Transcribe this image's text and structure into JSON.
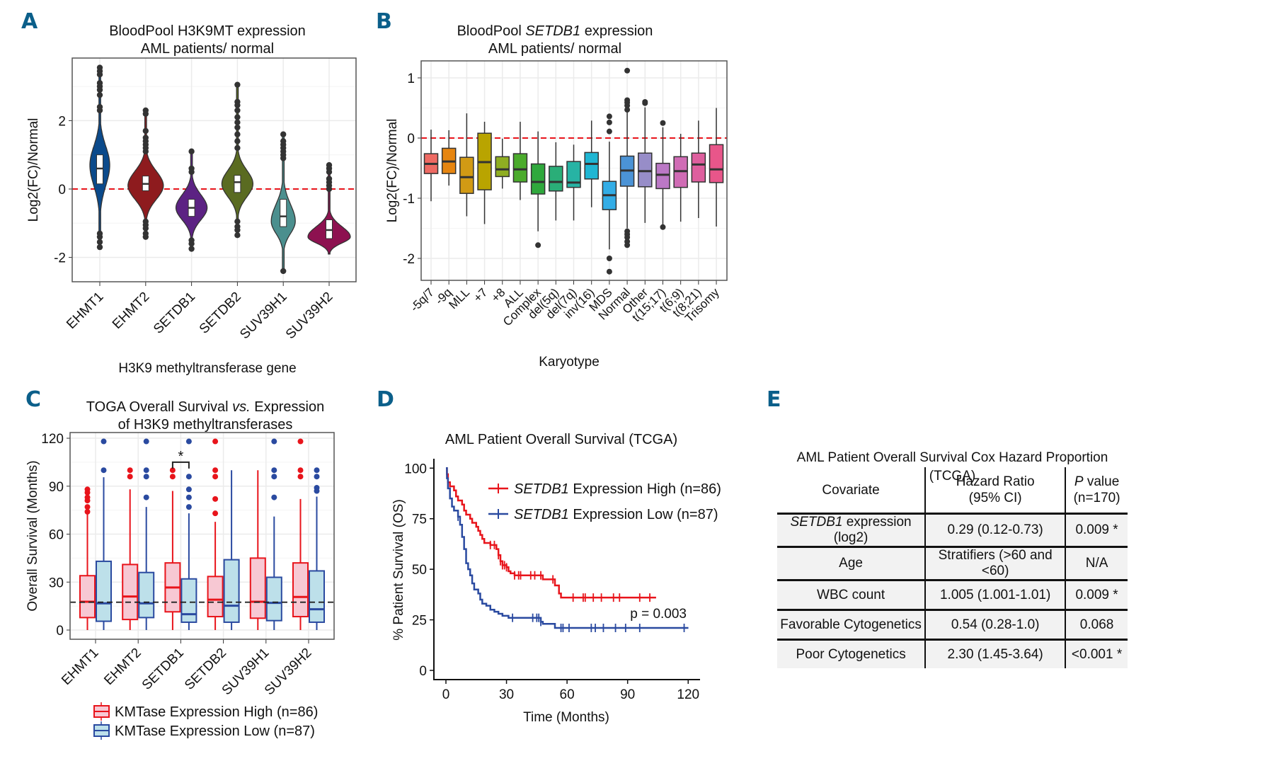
{
  "panel_labels": [
    "A",
    "B",
    "C",
    "D",
    "E"
  ],
  "chart_data": [
    {
      "id": "A",
      "type": "violin",
      "title_lines": [
        "BloodPool H3K9MT expression",
        "AML patients/ normal"
      ],
      "xlabel": "H3K9 methyltransferase gene",
      "ylabel": "Log2(FC)/Normal",
      "ylim": [
        -2.6,
        3.7
      ],
      "yticks": [
        2,
        0,
        -2
      ],
      "ytick_labels": [
        "2",
        "0",
        "-2"
      ],
      "reference_line": 0,
      "reference_color": "#e8141b",
      "grid": true,
      "categories": [
        "EHMT1",
        "EHMT2",
        "SETDB1",
        "SETDB2",
        "SUV39H1",
        "SUV39H2"
      ],
      "series": [
        {
          "name": "EHMT1",
          "color": "#0b4a8b",
          "min": -1.7,
          "max": 3.55,
          "mode": 0.7,
          "q1": 0.15,
          "median": 0.6,
          "q3": 1.0,
          "outliers": [
            3.55,
            3.45,
            3.35,
            3.1,
            3.0,
            2.9,
            2.75,
            2.4,
            2.3,
            -1.3,
            -1.4,
            -1.55,
            -1.7
          ]
        },
        {
          "name": "EHMT2",
          "color": "#8e1b1e",
          "min": -1.4,
          "max": 2.3,
          "mode": 0.1,
          "q1": -0.05,
          "median": 0.15,
          "q3": 0.38,
          "outliers": [
            2.3,
            2.2,
            1.7,
            1.5,
            1.4,
            1.3,
            1.2,
            1.1,
            -0.95,
            -1.05,
            -1.15,
            -1.3,
            -1.4
          ]
        },
        {
          "name": "SETDB1",
          "color": "#5c2283",
          "min": -1.8,
          "max": 1.1,
          "mode": -0.55,
          "q1": -0.8,
          "median": -0.55,
          "q3": -0.3,
          "outliers": [
            1.1,
            0.6,
            0.5,
            -1.5,
            -1.6,
            -1.75
          ]
        },
        {
          "name": "SETDB2",
          "color": "#5a6b21",
          "min": -1.4,
          "max": 3.05,
          "mode": 0.15,
          "q1": -0.1,
          "median": 0.2,
          "q3": 0.4,
          "outliers": [
            3.05,
            2.55,
            2.45,
            2.3,
            2.1,
            1.95,
            1.8,
            1.6,
            1.4,
            1.2,
            -0.95,
            -1.1,
            -1.2,
            -1.35
          ]
        },
        {
          "name": "SUV39H1",
          "color": "#4b8f8e",
          "min": -2.4,
          "max": 1.6,
          "mode": -0.95,
          "q1": -1.1,
          "median": -0.8,
          "q3": -0.3,
          "outliers": [
            1.6,
            1.4,
            1.3,
            1.2,
            1.1,
            1.0,
            0.9,
            -2.4
          ]
        },
        {
          "name": "SUV39H2",
          "color": "#8d1150",
          "min": -1.9,
          "max": 0.7,
          "mode": -1.4,
          "q1": -1.45,
          "median": -1.2,
          "q3": -0.9,
          "outliers": [
            0.7,
            0.6,
            0.5,
            0.3,
            0.2,
            0.1,
            0.0
          ]
        }
      ]
    },
    {
      "id": "B",
      "type": "box",
      "title_lines": [
        [
          "BloodPool ",
          "SETDB1",
          " expression"
        ],
        "AML patients/ normal"
      ],
      "xlabel": "Karyotype",
      "ylabel": "Log2(FC)/Normal",
      "ylim": [
        -2.4,
        1.35
      ],
      "yticks": [
        1,
        0,
        -1,
        -2
      ],
      "ytick_labels": [
        "1",
        "0",
        "-1",
        "-2"
      ],
      "reference_line": 0,
      "grid": true,
      "categories": [
        "-5q/7",
        "-9q",
        "MLL",
        "+7",
        "+8",
        "ALL",
        "Complex",
        "del(5q)",
        "del(7q)",
        "inv(16)",
        "MDS",
        "Normal",
        "Other",
        "t(15;17)",
        "t(6;9)",
        "t(8;21)",
        "Trisomy"
      ],
      "boxes": [
        {
          "lo": -1.05,
          "q1": -0.59,
          "med": -0.43,
          "q3": -0.26,
          "hi": 0.14,
          "out": [],
          "color": "#ee6a63"
        },
        {
          "lo": -0.79,
          "q1": -0.59,
          "med": -0.39,
          "q3": -0.17,
          "hi": 0.13,
          "out": [],
          "color": "#e68510"
        },
        {
          "lo": -1.3,
          "q1": -0.92,
          "med": -0.65,
          "q3": -0.32,
          "hi": 0.41,
          "out": [],
          "color": "#d29a14"
        },
        {
          "lo": -1.43,
          "q1": -0.86,
          "med": -0.4,
          "q3": 0.08,
          "hi": 0.27,
          "out": [],
          "color": "#b9a400"
        },
        {
          "lo": -0.84,
          "q1": -0.64,
          "med": -0.52,
          "q3": -0.31,
          "hi": -0.01,
          "out": [],
          "color": "#8fae22"
        },
        {
          "lo": -1.03,
          "q1": -0.73,
          "med": -0.52,
          "q3": -0.26,
          "hi": 0.27,
          "out": [],
          "color": "#4bab2c"
        },
        {
          "lo": -1.55,
          "q1": -0.93,
          "med": -0.73,
          "q3": -0.43,
          "hi": 0.11,
          "out": [
            -1.78
          ],
          "color": "#2fa83c"
        },
        {
          "lo": -1.37,
          "q1": -0.88,
          "med": -0.73,
          "q3": -0.47,
          "hi": -0.07,
          "out": [],
          "color": "#2aae78"
        },
        {
          "lo": -1.37,
          "q1": -0.82,
          "med": -0.74,
          "q3": -0.39,
          "hi": -0.11,
          "out": [],
          "color": "#27b3a4"
        },
        {
          "lo": -1.15,
          "q1": -0.68,
          "med": -0.43,
          "q3": -0.24,
          "hi": 0.29,
          "out": [],
          "color": "#20b6d3"
        },
        {
          "lo": -1.85,
          "q1": -1.19,
          "med": -0.95,
          "q3": -0.72,
          "hi": -0.06,
          "out": [
            0.36,
            0.26,
            0.11,
            -2.0,
            -2.22
          ],
          "color": "#33ade6"
        },
        {
          "lo": -1.5,
          "q1": -0.8,
          "med": -0.54,
          "q3": -0.3,
          "hi": 0.46,
          "out": [
            1.12,
            0.63,
            0.59,
            0.54,
            0.47,
            -1.55,
            -1.6,
            -1.65,
            -1.72,
            -1.78
          ],
          "color": "#4b93d6"
        },
        {
          "lo": -1.41,
          "q1": -0.81,
          "med": -0.55,
          "q3": -0.25,
          "hi": 0.51,
          "out": [
            0.6,
            0.58
          ],
          "color": "#978dc8"
        },
        {
          "lo": -1.48,
          "q1": -0.84,
          "med": -0.61,
          "q3": -0.42,
          "hi": 0.18,
          "out": [
            0.25,
            -1.48
          ],
          "color": "#bb78c6"
        },
        {
          "lo": -1.39,
          "q1": -0.82,
          "med": -0.55,
          "q3": -0.31,
          "hi": 0.07,
          "out": [],
          "color": "#d06cb5"
        },
        {
          "lo": -1.33,
          "q1": -0.73,
          "med": -0.44,
          "q3": -0.25,
          "hi": 0.29,
          "out": [],
          "color": "#de5f9e"
        },
        {
          "lo": -1.47,
          "q1": -0.74,
          "med": -0.52,
          "q3": -0.11,
          "hi": 0.5,
          "out": [],
          "color": "#e8568a"
        }
      ]
    },
    {
      "id": "C",
      "type": "box",
      "title_lines": [
        [
          "TOGA Overall Survival ",
          "vs.",
          " Expression"
        ],
        "of H3K9 methyltransferases"
      ],
      "ylabel": "Overall Survival (Months)",
      "ylim": [
        -5,
        124
      ],
      "yticks": [
        120,
        90,
        60,
        30,
        0
      ],
      "ytick_labels": [
        "120",
        "90",
        "60",
        "30",
        "0"
      ],
      "reference_line": 17.4,
      "grid": true,
      "categories": [
        "EHMT1",
        "EHMT2",
        "SETDB1",
        "SETDB2",
        "SUV39H1",
        "SUV39H2"
      ],
      "significance": {
        "category": "SETDB1",
        "label": "*",
        "y": 105
      },
      "legend": [
        {
          "label": "KMTase Expression High (n=86)",
          "stroke": "#e8141b",
          "fill": "#f7c8d3"
        },
        {
          "label": "KMTase Expression Low (n=87)",
          "stroke": "#2a4aa0",
          "fill": "#bde0ea"
        }
      ],
      "series": [
        {
          "name": "High",
          "boxes": [
            {
              "lo": 0,
              "q1": 7.8,
              "med": 17.7,
              "q3": 34,
              "hi": 73,
              "out": [
                88,
                86,
                83,
                81,
                77,
                74
              ]
            },
            {
              "lo": 0,
              "q1": 6.6,
              "med": 21,
              "q3": 41,
              "hi": 88,
              "out": [
                100,
                96
              ]
            },
            {
              "lo": 0,
              "q1": 11.4,
              "med": 26.6,
              "q3": 42,
              "hi": 87,
              "out": [
                100,
                96
              ]
            },
            {
              "lo": 0,
              "q1": 8.4,
              "med": 19,
              "q3": 33.5,
              "hi": 67.7,
              "out": [
                118,
                100,
                96,
                82,
                73
              ]
            },
            {
              "lo": 0,
              "q1": 7.4,
              "med": 17.7,
              "q3": 45,
              "hi": 100,
              "out": []
            },
            {
              "lo": 0,
              "q1": 8.4,
              "med": 20.7,
              "q3": 42,
              "hi": 82,
              "out": [
                118,
                100,
                96
              ]
            }
          ]
        },
        {
          "name": "Low",
          "boxes": [
            {
              "lo": 0,
              "q1": 5.5,
              "med": 16.7,
              "q3": 43,
              "hi": 95.6,
              "out": [
                118,
                100
              ]
            },
            {
              "lo": 0,
              "q1": 7.8,
              "med": 16.7,
              "q3": 36,
              "hi": 77,
              "out": [
                118,
                100,
                96,
                83
              ]
            },
            {
              "lo": 0,
              "q1": 4.9,
              "med": 9.9,
              "q3": 32,
              "hi": 73,
              "out": [
                118,
                96,
                88,
                83,
                77
              ]
            },
            {
              "lo": 0,
              "q1": 4.9,
              "med": 15.2,
              "q3": 44,
              "hi": 100,
              "out": []
            },
            {
              "lo": 0,
              "q1": 5.9,
              "med": 17,
              "q3": 33,
              "hi": 71,
              "out": [
                118,
                100,
                96,
                83
              ]
            },
            {
              "lo": 0,
              "q1": 4.9,
              "med": 13,
              "q3": 37,
              "hi": 83.5,
              "out": [
                100,
                96,
                89,
                87
              ]
            }
          ]
        }
      ]
    },
    {
      "id": "D",
      "type": "line",
      "title": "AML Patient Overall Survival (TCGA)",
      "xlabel": "Time (Months)",
      "ylabel": "% Patient Survival (OS)",
      "xlim": [
        0,
        125
      ],
      "ylim": [
        0,
        100
      ],
      "xticks": [
        0,
        30,
        60,
        90,
        120
      ],
      "xtick_labels": [
        "0",
        "30",
        "60",
        "90",
        "120"
      ],
      "yticks": [
        100,
        75,
        50,
        25,
        0
      ],
      "ytick_labels": [
        "100",
        "75",
        "50",
        "25",
        "0"
      ],
      "annotation": "p = 0.003",
      "legend_position": "top-right",
      "series": [
        {
          "name_italic": "SETDB1",
          "name": " Expression High (n=86)",
          "color": "#e8141b",
          "steps": [
            [
              0,
              100
            ],
            [
              0.5,
              97
            ],
            [
              1,
              93
            ],
            [
              2,
              91
            ],
            [
              4,
              89
            ],
            [
              5,
              86
            ],
            [
              6,
              84
            ],
            [
              8,
              82
            ],
            [
              9,
              79
            ],
            [
              10,
              77
            ],
            [
              12,
              75
            ],
            [
              13,
              73
            ],
            [
              15,
              71
            ],
            [
              16,
              69
            ],
            [
              17,
              67
            ],
            [
              18,
              65
            ],
            [
              19,
              63
            ],
            [
              22,
              62
            ],
            [
              25,
              60
            ],
            [
              26,
              57
            ],
            [
              27,
              54
            ],
            [
              28,
              52
            ],
            [
              30,
              51
            ],
            [
              31,
              49
            ],
            [
              32,
              48
            ],
            [
              34,
              47
            ],
            [
              47,
              47
            ],
            [
              48,
              45
            ],
            [
              53,
              45
            ],
            [
              54,
              42
            ],
            [
              56,
              38
            ],
            [
              57,
              36
            ],
            [
              102,
              36
            ]
          ],
          "censored": [
            22,
            24,
            26,
            27,
            28,
            29,
            30,
            34,
            36,
            37,
            42,
            44,
            47,
            53,
            63,
            68,
            69,
            73,
            77,
            83,
            86,
            96,
            101
          ]
        },
        {
          "name_italic": "SETDB1",
          "name": " Expression Low (n=87)",
          "color": "#2a4aa0",
          "steps": [
            [
              0,
              100
            ],
            [
              0.5,
              95
            ],
            [
              1,
              90
            ],
            [
              2,
              85
            ],
            [
              3,
              81
            ],
            [
              4,
              79
            ],
            [
              6,
              76
            ],
            [
              7,
              72
            ],
            [
              8,
              66
            ],
            [
              9,
              60
            ],
            [
              10,
              53
            ],
            [
              11,
              50
            ],
            [
              12,
              47
            ],
            [
              13,
              43
            ],
            [
              14,
              40
            ],
            [
              16,
              38
            ],
            [
              17,
              35
            ],
            [
              18,
              33
            ],
            [
              20,
              32
            ],
            [
              22,
              30
            ],
            [
              24,
              29
            ],
            [
              26,
              28
            ],
            [
              28,
              27
            ],
            [
              31,
              26
            ],
            [
              46,
              26
            ],
            [
              47,
              24
            ],
            [
              48,
              23
            ],
            [
              54,
              21
            ],
            [
              118,
              21
            ]
          ],
          "censored": [
            6,
            33,
            43,
            45,
            46,
            47,
            57,
            58,
            61,
            72,
            74,
            78,
            84,
            89,
            96,
            118
          ]
        }
      ]
    }
  ],
  "table": {
    "title": "AML Patient Overall Survival Cox Hazard Proportion (TCGA)",
    "headers": {
      "covariate": "Covariate",
      "hr_line1": "Hazard Ratio",
      "hr_line2": "(95% CI)",
      "p_italic": "P",
      "p_line1": " value",
      "p_line2": "(n=170)"
    },
    "rows": [
      {
        "covariate_italic": "SETDB1",
        "covariate": " expression (log2)",
        "hr": "0.29 (0.12-0.73)",
        "p": "0.009 *"
      },
      {
        "covariate_italic": "",
        "covariate": "Age",
        "hr": "Stratifiers (>60 and <60)",
        "p": "N/A"
      },
      {
        "covariate_italic": "",
        "covariate": "WBC count",
        "hr": "1.005 (1.001-1.01)",
        "p": "0.009 *"
      },
      {
        "covariate_italic": "",
        "covariate": "Favorable Cytogenetics",
        "hr": "0.54 (0.28-1.0)",
        "p": "0.068"
      },
      {
        "covariate_italic": "",
        "covariate": "Poor Cytogenetics",
        "hr": "2.30 (1.45-3.64)",
        "p": "<0.001 *"
      }
    ]
  }
}
